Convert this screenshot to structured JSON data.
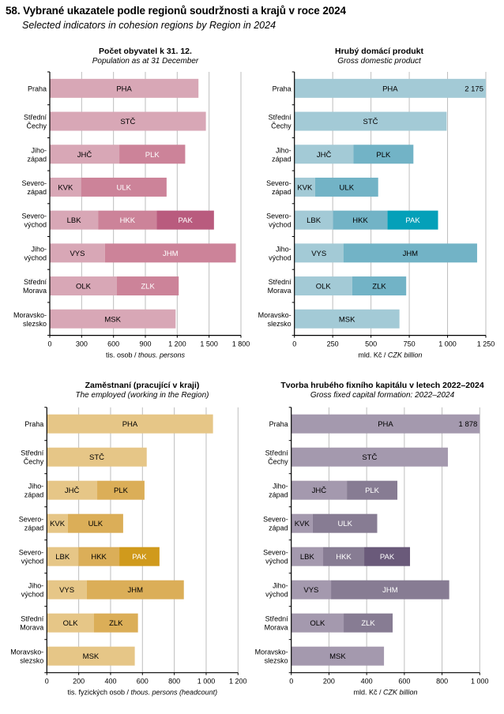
{
  "page": {
    "title": "58. Vybrané ukazatele podle regionů soudržnosti  a krajů v roce 2024",
    "subtitle": "Selected indicators in cohesion regions by Region in 2024"
  },
  "chart_data": [
    {
      "id": "population",
      "type": "bar",
      "orientation": "horizontal",
      "stacked": true,
      "title": "Počet obyvatel k 31. 12.",
      "subtitle": "Population as at 31 December",
      "xlabel_cz": "tis. osob / ",
      "xlabel_en": "thous. persons",
      "xlim": [
        0,
        1800
      ],
      "xticks": [
        0,
        300,
        600,
        900,
        1200,
        1500,
        1800
      ],
      "xtick_labels": [
        "0",
        "300",
        "600",
        "900",
        "1 200",
        "1 500",
        "1 800"
      ],
      "grid": true,
      "colors": [
        "#D8A7B6",
        "#CC8399",
        "#B95B7E"
      ],
      "label_colors": [
        "#000000",
        "#FFFFFF",
        "#FFFFFF"
      ],
      "categories": [
        {
          "label": [
            "Praha"
          ],
          "segments": [
            {
              "code": "PHA",
              "value": 1400
            }
          ]
        },
        {
          "label": [
            "Střední",
            "Čechy"
          ],
          "segments": [
            {
              "code": "STČ",
              "value": 1470
            }
          ]
        },
        {
          "label": [
            "Jiho-",
            "západ"
          ],
          "segments": [
            {
              "code": "JHČ",
              "value": 655
            },
            {
              "code": "PLK",
              "value": 620
            }
          ]
        },
        {
          "label": [
            "Severo-",
            "západ"
          ],
          "segments": [
            {
              "code": "KVK",
              "value": 295
            },
            {
              "code": "ULK",
              "value": 805
            }
          ]
        },
        {
          "label": [
            "Severo-",
            "východ"
          ],
          "segments": [
            {
              "code": "LBK",
              "value": 455
            },
            {
              "code": "HKK",
              "value": 553
            },
            {
              "code": "PAK",
              "value": 538
            }
          ]
        },
        {
          "label": [
            "Jiho-",
            "východ"
          ],
          "segments": [
            {
              "code": "VYS",
              "value": 520
            },
            {
              "code": "JHM",
              "value": 1232
            }
          ]
        },
        {
          "label": [
            "Střední",
            "Morava"
          ],
          "segments": [
            {
              "code": "OLK",
              "value": 632
            },
            {
              "code": "ZLK",
              "value": 582
            }
          ]
        },
        {
          "label": [
            "Moravsko-",
            "slezsko"
          ],
          "segments": [
            {
              "code": "MSK",
              "value": 1185
            }
          ]
        }
      ]
    },
    {
      "id": "gdp",
      "type": "bar",
      "orientation": "horizontal",
      "stacked": true,
      "title": "Hrubý domácí produkt",
      "subtitle": "Gross domestic product",
      "xlabel_cz": "mld. Kč / ",
      "xlabel_en": "CZK billion",
      "xlim": [
        0,
        1250
      ],
      "xticks": [
        0,
        250,
        500,
        750,
        1000,
        1250
      ],
      "xtick_labels": [
        "0",
        "250",
        "500",
        "750",
        "1 000",
        "1 250"
      ],
      "grid": true,
      "colors": [
        "#A3CAD6",
        "#72B3C6",
        "#04A0B9"
      ],
      "label_colors": [
        "#000000",
        "#000000",
        "#FFFFFF"
      ],
      "annotations": [
        {
          "category": "Praha",
          "text": "2 175",
          "value": 2175
        }
      ],
      "categories": [
        {
          "label": [
            "Praha"
          ],
          "segments": [
            {
              "code": "PHA",
              "value": 2175
            }
          ]
        },
        {
          "label": [
            "Střední",
            "Čechy"
          ],
          "segments": [
            {
              "code": "STČ",
              "value": 994
            }
          ]
        },
        {
          "label": [
            "Jiho-",
            "západ"
          ],
          "segments": [
            {
              "code": "JHČ",
              "value": 386
            },
            {
              "code": "PLK",
              "value": 391
            }
          ]
        },
        {
          "label": [
            "Severo-",
            "západ"
          ],
          "segments": [
            {
              "code": "KVK",
              "value": 135
            },
            {
              "code": "ULK",
              "value": 412
            }
          ]
        },
        {
          "label": [
            "Severo-",
            "východ"
          ],
          "segments": [
            {
              "code": "LBK",
              "value": 252
            },
            {
              "code": "HKK",
              "value": 356
            },
            {
              "code": "PAK",
              "value": 330
            }
          ]
        },
        {
          "label": [
            "Jiho-",
            "východ"
          ],
          "segments": [
            {
              "code": "VYS",
              "value": 320
            },
            {
              "code": "JHM",
              "value": 873
            }
          ]
        },
        {
          "label": [
            "Střední",
            "Morava"
          ],
          "segments": [
            {
              "code": "OLK",
              "value": 377
            },
            {
              "code": "ZLK",
              "value": 353
            }
          ]
        },
        {
          "label": [
            "Moravsko-",
            "slezsko"
          ],
          "segments": [
            {
              "code": "MSK",
              "value": 686
            }
          ]
        }
      ]
    },
    {
      "id": "employed",
      "type": "bar",
      "orientation": "horizontal",
      "stacked": true,
      "title": "Zaměstnaní (pracující v kraji)",
      "subtitle": "The employed (working in the Region)",
      "xlabel_cz": "tis. fyzických osob / ",
      "xlabel_en": "thous. persons (headcount)",
      "xlim": [
        0,
        1200
      ],
      "xticks": [
        0,
        200,
        400,
        600,
        800,
        1000,
        1200
      ],
      "xtick_labels": [
        "0",
        "200",
        "400",
        "600",
        "800",
        "1 000",
        "1 200"
      ],
      "grid": true,
      "colors": [
        "#E6C687",
        "#DBAE58",
        "#D09A1C"
      ],
      "label_colors": [
        "#000000",
        "#000000",
        "#FFFFFF"
      ],
      "categories": [
        {
          "label": [
            "Praha"
          ],
          "segments": [
            {
              "code": "PHA",
              "value": 1043
            }
          ]
        },
        {
          "label": [
            "Střední",
            "Čechy"
          ],
          "segments": [
            {
              "code": "STČ",
              "value": 627
            }
          ]
        },
        {
          "label": [
            "Jiho-",
            "západ"
          ],
          "segments": [
            {
              "code": "JHČ",
              "value": 316
            },
            {
              "code": "PLK",
              "value": 297
            }
          ]
        },
        {
          "label": [
            "Severo-",
            "západ"
          ],
          "segments": [
            {
              "code": "KVK",
              "value": 132
            },
            {
              "code": "ULK",
              "value": 347
            }
          ]
        },
        {
          "label": [
            "Severo-",
            "východ"
          ],
          "segments": [
            {
              "code": "LBK",
              "value": 198
            },
            {
              "code": "HKK",
              "value": 257
            },
            {
              "code": "PAK",
              "value": 252
            }
          ]
        },
        {
          "label": [
            "Jiho-",
            "východ"
          ],
          "segments": [
            {
              "code": "VYS",
              "value": 251
            },
            {
              "code": "JHM",
              "value": 609
            }
          ]
        },
        {
          "label": [
            "Střední",
            "Morava"
          ],
          "segments": [
            {
              "code": "OLK",
              "value": 296
            },
            {
              "code": "ZLK",
              "value": 276
            }
          ]
        },
        {
          "label": [
            "Moravsko-",
            "slezsko"
          ],
          "segments": [
            {
              "code": "MSK",
              "value": 552
            }
          ]
        }
      ]
    },
    {
      "id": "gfcf",
      "type": "bar",
      "orientation": "horizontal",
      "stacked": true,
      "title": "Tvorba hrubého fixního kapitálu v letech 2022–2024",
      "subtitle": "Gross fixed capital formation: 2022–2024",
      "xlabel_cz": "mld. Kč / ",
      "xlabel_en": "CZK billion",
      "xlim": [
        0,
        1000
      ],
      "xticks": [
        0,
        200,
        400,
        600,
        800,
        1000
      ],
      "xtick_labels": [
        "0",
        "200",
        "400",
        "600",
        "800",
        "1 000"
      ],
      "grid": true,
      "colors": [
        "#A499AE",
        "#877C93",
        "#6A5A7A"
      ],
      "label_colors": [
        "#000000",
        "#FFFFFF",
        "#FFFFFF"
      ],
      "annotations": [
        {
          "category": "Praha",
          "text": "1 878",
          "value": 1878
        }
      ],
      "categories": [
        {
          "label": [
            "Praha"
          ],
          "segments": [
            {
              "code": "PHA",
              "value": 1878
            }
          ]
        },
        {
          "label": [
            "Střední",
            "Čechy"
          ],
          "segments": [
            {
              "code": "STČ",
              "value": 831
            }
          ]
        },
        {
          "label": [
            "Jiho-",
            "západ"
          ],
          "segments": [
            {
              "code": "JHČ",
              "value": 295
            },
            {
              "code": "PLK",
              "value": 268
            }
          ]
        },
        {
          "label": [
            "Severo-",
            "západ"
          ],
          "segments": [
            {
              "code": "KVK",
              "value": 114
            },
            {
              "code": "ULK",
              "value": 342
            }
          ]
        },
        {
          "label": [
            "Severo-",
            "východ"
          ],
          "segments": [
            {
              "code": "LBK",
              "value": 169
            },
            {
              "code": "HKK",
              "value": 218
            },
            {
              "code": "PAK",
              "value": 243
            }
          ]
        },
        {
          "label": [
            "Jiho-",
            "východ"
          ],
          "segments": [
            {
              "code": "VYS",
              "value": 211
            },
            {
              "code": "JHM",
              "value": 627
            }
          ]
        },
        {
          "label": [
            "Střední",
            "Morava"
          ],
          "segments": [
            {
              "code": "OLK",
              "value": 278
            },
            {
              "code": "ZLK",
              "value": 260
            }
          ]
        },
        {
          "label": [
            "Moravsko-",
            "slezsko"
          ],
          "segments": [
            {
              "code": "MSK",
              "value": 492
            }
          ]
        }
      ]
    }
  ]
}
